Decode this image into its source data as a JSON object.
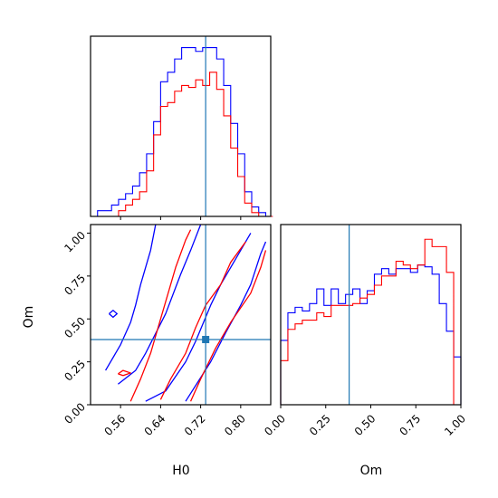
{
  "chart_data": {
    "type": "corner",
    "parameters": [
      "H0",
      "Om"
    ],
    "truth": {
      "H0": 0.73,
      "Om": 0.38,
      "color": "#1f77b4"
    },
    "series_colors": {
      "blue": "#0000ff",
      "red": "#ff0000"
    },
    "panels": [
      {
        "id": "hist-H0",
        "type": "histogram",
        "parameter": "H0",
        "xlim": [
          0.5,
          0.86
        ],
        "bin_edges": [
          0.5,
          0.514,
          0.528,
          0.542,
          0.556,
          0.57,
          0.584,
          0.598,
          0.612,
          0.626,
          0.64,
          0.654,
          0.668,
          0.682,
          0.696,
          0.71,
          0.724,
          0.738,
          0.752,
          0.766,
          0.78,
          0.794,
          0.808,
          0.822,
          0.836,
          0.85,
          0.864
        ],
        "series": [
          {
            "name": "",
            "color": "#0000ff",
            "counts": [
              0.0,
              0.03,
              0.03,
              0.06,
              0.09,
              0.12,
              0.16,
              0.23,
              0.33,
              0.5,
              0.71,
              0.76,
              0.83,
              0.89,
              0.89,
              0.87,
              0.89,
              0.89,
              0.83,
              0.69,
              0.49,
              0.33,
              0.13,
              0.05,
              0.02,
              0.0
            ]
          },
          {
            "name": "",
            "color": "#ff0000",
            "counts": [
              0.0,
              0.0,
              0.0,
              0.0,
              0.03,
              0.06,
              0.09,
              0.13,
              0.24,
              0.43,
              0.58,
              0.6,
              0.66,
              0.69,
              0.68,
              0.72,
              0.69,
              0.76,
              0.67,
              0.53,
              0.36,
              0.21,
              0.07,
              0.02,
              0.0,
              0.0
            ]
          }
        ]
      },
      {
        "id": "hist-Om",
        "type": "histogram",
        "parameter": "Om",
        "xlim": [
          0.0,
          1.0
        ],
        "xlabel": "Om",
        "xticks": [
          "0.00",
          "0.25",
          "0.50",
          "0.75",
          "1.00"
        ],
        "xtick_values": [
          0.0,
          0.25,
          0.5,
          0.75,
          1.0
        ],
        "bin_edges": [
          0.0,
          0.04,
          0.08,
          0.12,
          0.16,
          0.2,
          0.24,
          0.28,
          0.32,
          0.36,
          0.4,
          0.44,
          0.48,
          0.52,
          0.56,
          0.6,
          0.64,
          0.68,
          0.72,
          0.76,
          0.8,
          0.84,
          0.88,
          0.92,
          0.96,
          1.0
        ],
        "series": [
          {
            "name": "",
            "color": "#0000ff",
            "counts": [
              0.35,
              0.5,
              0.53,
              0.51,
              0.55,
              0.63,
              0.54,
              0.63,
              0.55,
              0.6,
              0.63,
              0.55,
              0.62,
              0.71,
              0.74,
              0.71,
              0.74,
              0.74,
              0.72,
              0.76,
              0.75,
              0.71,
              0.55,
              0.4,
              0.26
            ]
          },
          {
            "name": "",
            "color": "#ff0000",
            "counts": [
              0.24,
              0.41,
              0.44,
              0.46,
              0.46,
              0.5,
              0.48,
              0.54,
              0.54,
              0.54,
              0.55,
              0.58,
              0.6,
              0.65,
              0.7,
              0.7,
              0.78,
              0.76,
              0.74,
              0.76,
              0.9,
              0.86,
              0.86,
              0.72,
              0.0
            ]
          }
        ]
      },
      {
        "id": "contour-H0-Om",
        "type": "contour",
        "xparameter": "H0",
        "yparameter": "Om",
        "xlim": [
          0.5,
          0.86
        ],
        "ylim": [
          0.0,
          1.05
        ],
        "xlabel": "H0",
        "ylabel": "Om",
        "xticks": [
          "0.56",
          "0.64",
          "0.72",
          "0.80"
        ],
        "xtick_values": [
          0.56,
          0.64,
          0.72,
          0.8
        ],
        "yticks": [
          "0.00",
          "0.25",
          "0.50",
          "0.75",
          "1.00"
        ],
        "ytick_values": [
          0.0,
          0.25,
          0.5,
          0.75,
          1.0
        ],
        "contours": [
          {
            "color": "#0000ff",
            "points": [
              [
                0.53,
                0.2
              ],
              [
                0.56,
                0.35
              ],
              [
                0.58,
                0.48
              ],
              [
                0.59,
                0.58
              ],
              [
                0.6,
                0.7
              ],
              [
                0.62,
                0.9
              ],
              [
                0.63,
                1.05
              ]
            ]
          },
          {
            "color": "#0000ff",
            "points": [
              [
                0.555,
                0.12
              ],
              [
                0.59,
                0.2
              ],
              [
                0.61,
                0.3
              ],
              [
                0.65,
                0.53
              ],
              [
                0.68,
                0.76
              ],
              [
                0.7,
                0.9
              ],
              [
                0.72,
                1.05
              ]
            ]
          },
          {
            "color": "#0000ff",
            "points": [
              [
                0.61,
                0.02
              ],
              [
                0.65,
                0.08
              ],
              [
                0.69,
                0.25
              ],
              [
                0.71,
                0.37
              ],
              [
                0.74,
                0.58
              ],
              [
                0.76,
                0.7
              ],
              [
                0.79,
                0.85
              ],
              [
                0.82,
                1.0
              ]
            ]
          },
          {
            "color": "#0000ff",
            "points": [
              [
                0.69,
                0.02
              ],
              [
                0.74,
                0.25
              ],
              [
                0.77,
                0.42
              ],
              [
                0.8,
                0.58
              ],
              [
                0.82,
                0.7
              ],
              [
                0.84,
                0.88
              ],
              [
                0.85,
                0.95
              ]
            ]
          },
          {
            "color": "#0000ff",
            "points": [
              [
                0.537,
                0.53
              ],
              [
                0.545,
                0.55
              ],
              [
                0.553,
                0.53
              ],
              [
                0.545,
                0.51
              ],
              [
                0.537,
                0.53
              ]
            ]
          },
          {
            "color": "#ff0000",
            "points": [
              [
                0.58,
                0.02
              ],
              [
                0.6,
                0.15
              ],
              [
                0.62,
                0.3
              ],
              [
                0.64,
                0.5
              ],
              [
                0.65,
                0.6
              ],
              [
                0.67,
                0.8
              ],
              [
                0.69,
                0.96
              ],
              [
                0.7,
                1.02
              ]
            ]
          },
          {
            "color": "#ff0000",
            "points": [
              [
                0.64,
                0.03
              ],
              [
                0.66,
                0.15
              ],
              [
                0.69,
                0.3
              ],
              [
                0.71,
                0.45
              ],
              [
                0.73,
                0.58
              ],
              [
                0.76,
                0.7
              ],
              [
                0.78,
                0.83
              ],
              [
                0.81,
                0.95
              ]
            ]
          },
          {
            "color": "#ff0000",
            "points": [
              [
                0.7,
                0.02
              ],
              [
                0.72,
                0.15
              ],
              [
                0.75,
                0.33
              ],
              [
                0.78,
                0.48
              ],
              [
                0.82,
                0.65
              ],
              [
                0.84,
                0.8
              ],
              [
                0.85,
                0.9
              ]
            ]
          },
          {
            "color": "#ff0000",
            "points": [
              [
                0.555,
                0.18
              ],
              [
                0.565,
                0.2
              ],
              [
                0.58,
                0.185
              ],
              [
                0.565,
                0.17
              ],
              [
                0.555,
                0.18
              ]
            ]
          }
        ]
      }
    ]
  }
}
